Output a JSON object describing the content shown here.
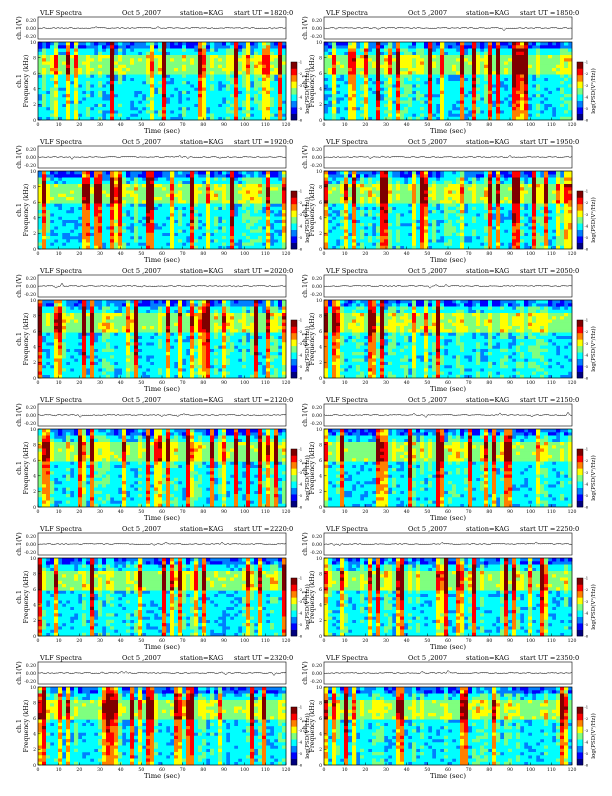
{
  "page": {
    "background": "#ffffff"
  },
  "common": {
    "header_prefix": "VLF Spectra",
    "date": "Oct 5 ,2007",
    "station": "station=KAG",
    "start_ut_label": "start UT =",
    "ch0_label": "ch.1(V)",
    "ch0_ticks": [
      "0.20",
      "0.00",
      "-0.20"
    ],
    "ch1_label": "ch.1",
    "freq_label": "Frequency (kHz)",
    "time_label": "Time (sec)",
    "cbar_label": "log(PSD(V²/Hz))",
    "cbar_ticks": [
      "-1",
      "-2",
      "-3",
      "-4",
      "-5",
      "-6"
    ],
    "colormap": [
      "#00007f",
      "#0000ff",
      "#007fff",
      "#00ffff",
      "#7fff7f",
      "#ffff00",
      "#ff7f00",
      "#ff0000",
      "#7f0000"
    ]
  },
  "chart_data": [
    {
      "type": "heatmap",
      "start_ut": "1820:0",
      "x_ticks": [
        0,
        10,
        20,
        30,
        40,
        50,
        60,
        70,
        80,
        90,
        100,
        110,
        120
      ],
      "xlim": [
        0,
        120
      ],
      "y_ticks": [
        0,
        2,
        4,
        6,
        8,
        10
      ],
      "ylim": [
        0,
        10
      ]
    },
    {
      "type": "heatmap",
      "start_ut": "1850:0",
      "x_ticks": [
        0,
        10,
        20,
        30,
        40,
        50,
        60,
        70,
        80,
        90,
        100,
        110,
        120
      ],
      "xlim": [
        0,
        120
      ],
      "y_ticks": [
        0,
        2,
        4,
        6,
        8,
        10
      ],
      "ylim": [
        0,
        10
      ]
    },
    {
      "type": "heatmap",
      "start_ut": "1920:0",
      "x_ticks": [
        0,
        10,
        20,
        30,
        40,
        50,
        60,
        70,
        80,
        90,
        100,
        110,
        120
      ],
      "xlim": [
        0,
        120
      ],
      "y_ticks": [
        0,
        2,
        4,
        6,
        8,
        10
      ],
      "ylim": [
        0,
        10
      ]
    },
    {
      "type": "heatmap",
      "start_ut": "1950:0",
      "x_ticks": [
        0,
        10,
        20,
        30,
        40,
        50,
        60,
        70,
        80,
        90,
        100,
        110,
        120
      ],
      "xlim": [
        0,
        120
      ],
      "y_ticks": [
        0,
        2,
        4,
        6,
        8,
        10
      ],
      "ylim": [
        0,
        10
      ]
    },
    {
      "type": "heatmap",
      "start_ut": "2020:0",
      "x_ticks": [
        0,
        10,
        20,
        30,
        40,
        50,
        60,
        70,
        80,
        90,
        100,
        110,
        120
      ],
      "xlim": [
        0,
        120
      ],
      "y_ticks": [
        0,
        2,
        4,
        6,
        8,
        10
      ],
      "ylim": [
        0,
        10
      ]
    },
    {
      "type": "heatmap",
      "start_ut": "2050:0",
      "x_ticks": [
        0,
        10,
        20,
        30,
        40,
        50,
        60,
        70,
        80,
        90,
        100,
        110,
        120
      ],
      "xlim": [
        0,
        120
      ],
      "y_ticks": [
        0,
        2,
        4,
        6,
        8,
        10
      ],
      "ylim": [
        0,
        10
      ]
    },
    {
      "type": "heatmap",
      "start_ut": "2120:0",
      "x_ticks": [
        0,
        10,
        20,
        30,
        40,
        50,
        60,
        70,
        80,
        90,
        100,
        110,
        120
      ],
      "xlim": [
        0,
        120
      ],
      "y_ticks": [
        0,
        2,
        4,
        6,
        8,
        10
      ],
      "ylim": [
        0,
        10
      ]
    },
    {
      "type": "heatmap",
      "start_ut": "2150:0",
      "x_ticks": [
        0,
        10,
        20,
        30,
        40,
        50,
        60,
        70,
        80,
        90,
        100,
        110,
        120
      ],
      "xlim": [
        0,
        120
      ],
      "y_ticks": [
        0,
        2,
        4,
        6,
        8,
        10
      ],
      "ylim": [
        0,
        10
      ]
    },
    {
      "type": "heatmap",
      "start_ut": "2220:0",
      "x_ticks": [
        0,
        10,
        20,
        30,
        40,
        50,
        60,
        70,
        80,
        90,
        100,
        110,
        120
      ],
      "xlim": [
        0,
        120
      ],
      "y_ticks": [
        0,
        2,
        4,
        6,
        8,
        10
      ],
      "ylim": [
        0,
        10
      ]
    },
    {
      "type": "heatmap",
      "start_ut": "2250:0",
      "x_ticks": [
        0,
        10,
        20,
        30,
        40,
        50,
        60,
        70,
        80,
        90,
        100,
        110,
        120
      ],
      "xlim": [
        0,
        120
      ],
      "y_ticks": [
        0,
        2,
        4,
        6,
        8,
        10
      ],
      "ylim": [
        0,
        10
      ]
    },
    {
      "type": "heatmap",
      "start_ut": "2320:0",
      "x_ticks": [
        0,
        10,
        20,
        30,
        40,
        50,
        60,
        70,
        80,
        90,
        100,
        110,
        120
      ],
      "xlim": [
        0,
        120
      ],
      "y_ticks": [
        0,
        2,
        4,
        6,
        8,
        10
      ],
      "ylim": [
        0,
        10
      ]
    },
    {
      "type": "heatmap",
      "start_ut": "2350:0",
      "x_ticks": [
        0,
        10,
        20,
        30,
        40,
        50,
        60,
        70,
        80,
        90,
        100,
        110,
        120
      ],
      "xlim": [
        0,
        120
      ],
      "y_ticks": [
        0,
        2,
        4,
        6,
        8,
        10
      ],
      "ylim": [
        0,
        10
      ]
    }
  ]
}
